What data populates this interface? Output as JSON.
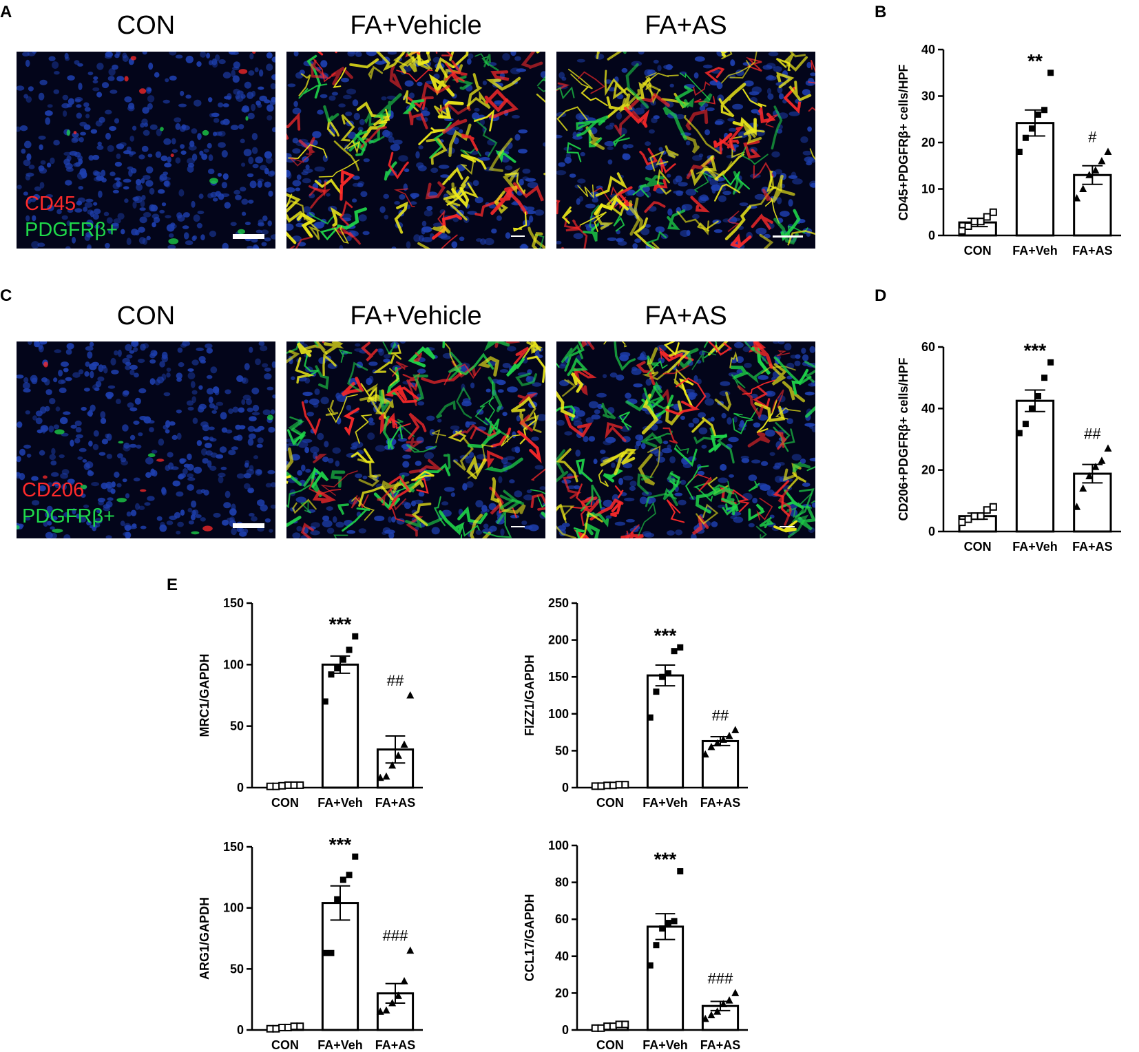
{
  "panels": {
    "A": {
      "label": "A",
      "columns": [
        "CON",
        "FA+Vehicle",
        "FA+AS"
      ],
      "stain_red": "CD45",
      "stain_green": "PDGFRβ+"
    },
    "B": {
      "label": "B"
    },
    "C": {
      "label": "C",
      "columns": [
        "CON",
        "FA+Vehicle",
        "FA+AS"
      ],
      "stain_red": "CD206",
      "stain_green": "PDGFRβ+"
    },
    "D": {
      "label": "D"
    },
    "E": {
      "label": "E"
    }
  },
  "colors": {
    "nuclei": "#1e3fae",
    "stain_red": "#ff2a2a",
    "stain_green": "#1fd84a",
    "merge_yellow": "#f2ee1a"
  },
  "chart_data": [
    {
      "id": "B",
      "type": "bar",
      "categories": [
        "CON",
        "FA+Veh",
        "FA+AS"
      ],
      "ylabel": "CD45+PDGFRβ+ cells/HPF",
      "ylim": [
        0,
        40
      ],
      "yticks": [
        0,
        10,
        20,
        30,
        40
      ],
      "values": [
        2.8,
        24.2,
        13.0
      ],
      "errors": [
        0.9,
        2.8,
        2.0
      ],
      "significance": [
        "",
        "**",
        "#"
      ],
      "markers": [
        "square-open",
        "square",
        "triangle"
      ],
      "points": [
        [
          1,
          2,
          3,
          3,
          4,
          5
        ],
        [
          18,
          21,
          23,
          26,
          27,
          35
        ],
        [
          8,
          10,
          13,
          14,
          16,
          18
        ]
      ]
    },
    {
      "id": "D",
      "type": "bar",
      "categories": [
        "CON",
        "FA+Veh",
        "FA+AS"
      ],
      "ylabel": "CD206+PDGFRβ+ cells/HPF",
      "ylim": [
        0,
        60
      ],
      "yticks": [
        0,
        20,
        40,
        60
      ],
      "values": [
        5.0,
        42.5,
        18.8
      ],
      "errors": [
        1.0,
        3.5,
        3.0
      ],
      "significance": [
        "",
        "***",
        "##"
      ],
      "markers": [
        "square-open",
        "square",
        "triangle"
      ],
      "points": [
        [
          3,
          4,
          5,
          5,
          7,
          8
        ],
        [
          32,
          35,
          40,
          44,
          50,
          55
        ],
        [
          8,
          14,
          18,
          21,
          23,
          27
        ]
      ]
    },
    {
      "id": "E-MRC1",
      "type": "bar",
      "categories": [
        "CON",
        "FA+Veh",
        "FA+AS"
      ],
      "ylabel": "MRC1/GAPDH",
      "ylim": [
        0,
        150
      ],
      "yticks": [
        0,
        50,
        100,
        150
      ],
      "values": [
        1.5,
        100,
        31
      ],
      "errors": [
        0.5,
        7,
        11
      ],
      "significance": [
        "",
        "***",
        "##"
      ],
      "markers": [
        "square-open",
        "square",
        "triangle"
      ],
      "points": [
        [
          1,
          1,
          1.5,
          2,
          2,
          2
        ],
        [
          70,
          92,
          97,
          104,
          112,
          123
        ],
        [
          8,
          9,
          18,
          26,
          35,
          75
        ]
      ]
    },
    {
      "id": "E-FIZZ1",
      "type": "bar",
      "categories": [
        "CON",
        "FA+Veh",
        "FA+AS"
      ],
      "ylabel": "FIZZ1/GAPDH",
      "ylim": [
        0,
        250
      ],
      "yticks": [
        0,
        50,
        100,
        150,
        200,
        250
      ],
      "values": [
        3,
        152,
        63
      ],
      "errors": [
        1,
        14,
        6
      ],
      "significance": [
        "",
        "***",
        "##"
      ],
      "markers": [
        "square-open",
        "square",
        "triangle"
      ],
      "points": [
        [
          2,
          2,
          3,
          3,
          4,
          4
        ],
        [
          95,
          130,
          150,
          155,
          185,
          190
        ],
        [
          45,
          55,
          60,
          65,
          70,
          78
        ]
      ]
    },
    {
      "id": "E-ARG1",
      "type": "bar",
      "categories": [
        "CON",
        "FA+Veh",
        "FA+AS"
      ],
      "ylabel": "ARG1/GAPDH",
      "ylim": [
        0,
        150
      ],
      "yticks": [
        0,
        50,
        100,
        150
      ],
      "values": [
        2,
        104,
        30
      ],
      "errors": [
        0.6,
        14,
        8
      ],
      "significance": [
        "",
        "***",
        "###"
      ],
      "markers": [
        "square-open",
        "square",
        "triangle"
      ],
      "points": [
        [
          1,
          1,
          2,
          2,
          3,
          3
        ],
        [
          63,
          63,
          107,
          123,
          127,
          142
        ],
        [
          15,
          16,
          22,
          28,
          40,
          65
        ]
      ]
    },
    {
      "id": "E-CCL17",
      "type": "bar",
      "categories": [
        "CON",
        "FA+Veh",
        "FA+AS"
      ],
      "ylabel": "CCL17/GAPDH",
      "ylim": [
        0,
        100
      ],
      "yticks": [
        0,
        20,
        40,
        60,
        80,
        100
      ],
      "values": [
        2,
        56,
        13
      ],
      "errors": [
        0.6,
        7,
        2.5
      ],
      "significance": [
        "",
        "***",
        "###"
      ],
      "markers": [
        "square-open",
        "square",
        "triangle"
      ],
      "points": [
        [
          1,
          1,
          2,
          2,
          3,
          3
        ],
        [
          35,
          46,
          55,
          58,
          59,
          86
        ],
        [
          6,
          8,
          10,
          14,
          16,
          20
        ]
      ]
    }
  ]
}
